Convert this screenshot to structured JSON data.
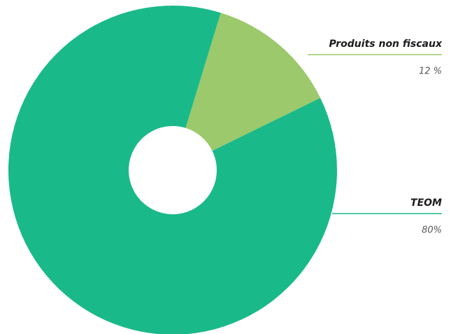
{
  "chart_data": {
    "type": "donut",
    "categories": [
      "Produits non fiscaux",
      "TEOM"
    ],
    "values": [
      12,
      80
    ],
    "value_labels": [
      "12 %",
      "80%"
    ],
    "colors": [
      "#9cc96b",
      "#1ab98a"
    ]
  }
}
